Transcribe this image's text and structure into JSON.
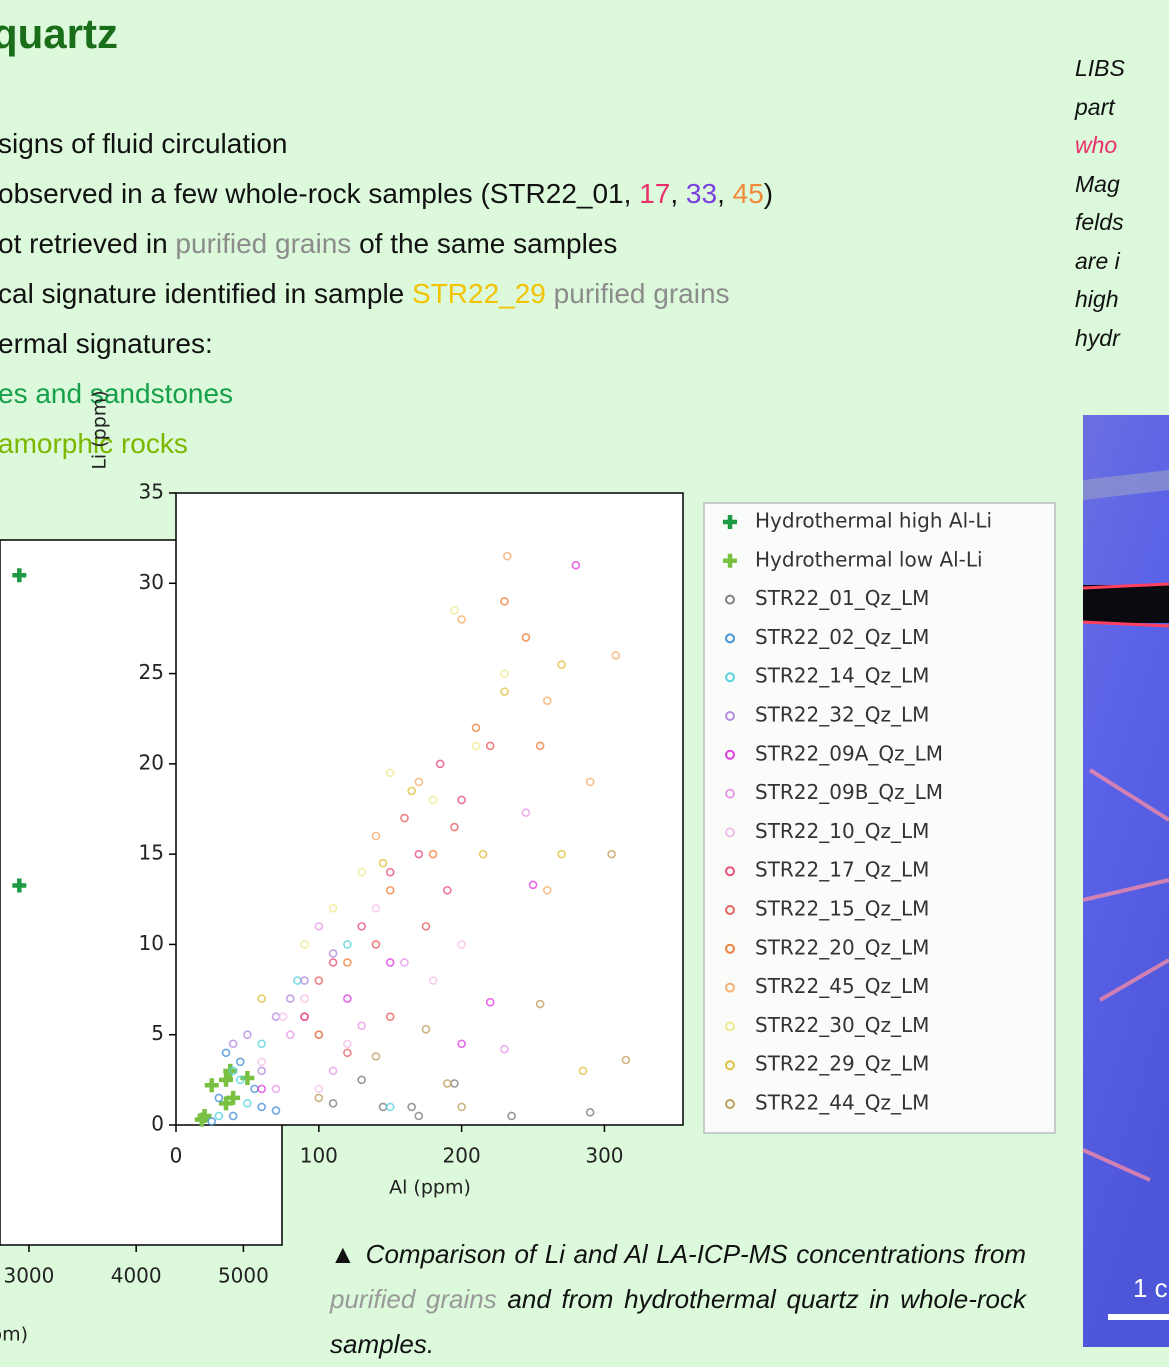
{
  "header": {
    "title": "quartz"
  },
  "bullets": [
    [
      {
        "text": "signs of fluid circulation"
      }
    ],
    [
      {
        "text": "observed in a few whole-rock samples (STR22_01, "
      },
      {
        "text": "17",
        "color": "#e8306a"
      },
      {
        "text": ", "
      },
      {
        "text": "33",
        "color": "#7b3fe0"
      },
      {
        "text": ", "
      },
      {
        "text": "45",
        "color": "#f08a3a"
      },
      {
        "text": ")"
      }
    ],
    [
      {
        "text": "ot retrieved in "
      },
      {
        "text": "purified grains",
        "color": "#8c8c8c"
      },
      {
        "text": " of the same samples"
      }
    ],
    [
      {
        "text": "cal signature identified in sample "
      },
      {
        "text": "STR22_29",
        "color": "#f2c300"
      },
      {
        "text": " purified grains",
        "color": "#8c8c8c"
      }
    ],
    [
      {
        "text": "ermal signatures:"
      }
    ],
    [
      {
        "text": "es and sandstones",
        "color": "#17a04a"
      }
    ],
    [
      {
        "text": "amorphic rocks",
        "color": "#7ab800"
      }
    ]
  ],
  "side_text": [
    [
      {
        "text": "LIBS"
      }
    ],
    [
      {
        "text": "part"
      }
    ],
    [
      {
        "text": "who",
        "color": "#e8306a"
      }
    ],
    [
      {
        "text": "Mag"
      }
    ],
    [
      {
        "text": "felds"
      }
    ],
    [
      {
        "text": "are i"
      }
    ],
    [
      {
        "text": "high"
      }
    ],
    [
      {
        "text": "hydr"
      }
    ]
  ],
  "image": {
    "scale_label": "1 c"
  },
  "caption": [
    {
      "text": "▲ Comparison of Li and Al LA-ICP-MS concentrations from "
    },
    {
      "text": "purified grains",
      "color": "#999999"
    },
    {
      "text": " and from hydrothermal quartz in whole-rock samples."
    }
  ],
  "chart_data": [
    {
      "type": "scatter",
      "y_label": "Li (ppm)",
      "x_label": "Al (ppm)",
      "xlim": [
        0,
        355
      ],
      "ylim": [
        0,
        35
      ],
      "xticks": [
        0,
        100,
        200,
        300
      ],
      "yticks": [
        0,
        5,
        10,
        15,
        20,
        25,
        30,
        35
      ],
      "series": [
        {
          "name": "Hydrothermal high Al-Li",
          "color": "#1f9a44",
          "marker": "+",
          "x": [],
          "values": []
        },
        {
          "name": "Hydrothermal low Al-Li",
          "color": "#7ac143",
          "marker": "+",
          "x": [
            18,
            20,
            25,
            35,
            35,
            38,
            40,
            50
          ],
          "values": [
            0.3,
            0.5,
            2.2,
            1.2,
            2.5,
            3.0,
            1.5,
            2.6
          ]
        },
        {
          "name": "STR22_01_Qz_LM",
          "color": "#808080",
          "marker": "o",
          "x": [
            130,
            145,
            170,
            195,
            235,
            290,
            110,
            165
          ],
          "values": [
            2.5,
            1,
            0.5,
            2.3,
            0.5,
            0.7,
            1.2,
            1
          ]
        },
        {
          "name": "STR22_02_Qz_LM",
          "color": "#4a90d9",
          "marker": "o",
          "x": [
            30,
            40,
            45,
            60,
            35,
            55,
            70,
            25
          ],
          "values": [
            1.5,
            0.5,
            3.5,
            1,
            4,
            2,
            0.8,
            0.2
          ]
        },
        {
          "name": "STR22_14_Qz_LM",
          "color": "#5ad4e0",
          "marker": "o",
          "x": [
            40,
            50,
            120,
            85,
            150,
            60,
            30,
            45
          ],
          "values": [
            3,
            1.2,
            10,
            8,
            1,
            4.5,
            0.5,
            2.5
          ]
        },
        {
          "name": "STR22_32_Qz_LM",
          "color": "#b48be0",
          "marker": "o",
          "x": [
            50,
            70,
            90,
            110,
            60,
            100,
            80,
            40
          ],
          "values": [
            5,
            6,
            8,
            9.5,
            3,
            5,
            7,
            4.5
          ]
        },
        {
          "name": "STR22_09A_Qz_LM",
          "color": "#e040e0",
          "marker": "o",
          "x": [
            280,
            120,
            220,
            200,
            90,
            150,
            250,
            60
          ],
          "values": [
            31,
            7,
            6.8,
            4.5,
            6,
            9,
            13.3,
            2
          ]
        },
        {
          "name": "STR22_09B_Qz_LM",
          "color": "#e89ae8",
          "marker": "o",
          "x": [
            100,
            130,
            245,
            230,
            80,
            160,
            110,
            70
          ],
          "values": [
            11,
            5.5,
            17.3,
            4.2,
            5,
            9,
            3,
            2
          ]
        },
        {
          "name": "STR22_10_Qz_LM",
          "color": "#f5c0e8",
          "marker": "o",
          "x": [
            90,
            140,
            180,
            60,
            120,
            200,
            100,
            75
          ],
          "values": [
            7,
            12,
            8,
            3.5,
            4.5,
            10,
            2,
            6
          ]
        },
        {
          "name": "STR22_17_Qz_LM",
          "color": "#e8507a",
          "marker": "o",
          "x": [
            185,
            170,
            200,
            150,
            130,
            190,
            110,
            90
          ],
          "values": [
            20,
            15,
            18,
            14,
            11,
            13,
            9,
            6
          ]
        },
        {
          "name": "STR22_15_Qz_LM",
          "color": "#e86060",
          "marker": "o",
          "x": [
            160,
            195,
            220,
            140,
            100,
            175,
            150,
            120
          ],
          "values": [
            17,
            16.5,
            21,
            10,
            8,
            11,
            6,
            4
          ]
        },
        {
          "name": "STR22_20_Qz_LM",
          "color": "#f08040",
          "marker": "o",
          "x": [
            230,
            245,
            255,
            210,
            180,
            150,
            120,
            100
          ],
          "values": [
            29,
            27,
            21,
            22,
            15,
            13,
            9,
            5
          ]
        },
        {
          "name": "STR22_45_Qz_LM",
          "color": "#f8b070",
          "marker": "o",
          "x": [
            232,
            308,
            200,
            260,
            170,
            140,
            290,
            260
          ],
          "values": [
            31.5,
            26,
            28,
            23.5,
            19,
            16,
            19,
            13
          ]
        },
        {
          "name": "STR22_30_Qz_LM",
          "color": "#f0e890",
          "marker": "o",
          "x": [
            195,
            230,
            150,
            180,
            130,
            210,
            110,
            90
          ],
          "values": [
            28.5,
            25,
            19.5,
            18,
            14,
            21,
            12,
            10
          ]
        },
        {
          "name": "STR22_29_Qz_LM",
          "color": "#e0c040",
          "marker": "o",
          "x": [
            270,
            230,
            215,
            165,
            145,
            285,
            60,
            270
          ],
          "values": [
            25.5,
            24,
            15,
            18.5,
            14.5,
            3,
            7,
            15
          ]
        },
        {
          "name": "STR22_44_Qz_LM",
          "color": "#c0a060",
          "marker": "o",
          "x": [
            305,
            315,
            255,
            190,
            200,
            100,
            140,
            175
          ],
          "values": [
            15,
            3.6,
            6.7,
            2.3,
            1,
            1.5,
            3.8,
            5.3
          ]
        }
      ]
    },
    {
      "type": "scatter",
      "x_label": "Al (ppm)",
      "xlim": [
        2730,
        5360
      ],
      "ylim": [
        0,
        100
      ],
      "xticks": [
        3000,
        4000,
        5000
      ],
      "series": [
        {
          "color": "#1f9a44",
          "marker": "+",
          "x": [
            2910,
            2910
          ],
          "values": [
            95,
            51
          ]
        }
      ]
    }
  ]
}
